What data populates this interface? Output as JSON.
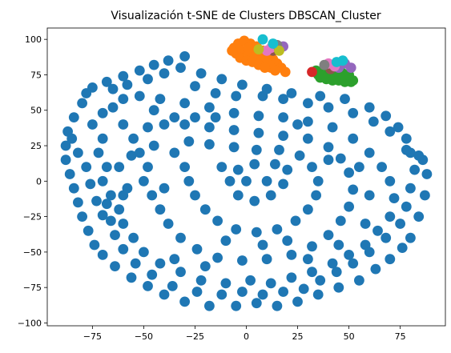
{
  "chart_data": {
    "type": "scatter",
    "title": "Visualización t-SNE de Clusters DBSCAN_Cluster",
    "xlabel": "",
    "ylabel": "",
    "xlim": [
      -97,
      97
    ],
    "ylim": [
      -102,
      108
    ],
    "x_ticks": [
      -75,
      -50,
      -25,
      0,
      25,
      50,
      75
    ],
    "y_ticks": [
      -100,
      -75,
      -50,
      -25,
      0,
      25,
      50,
      75,
      100
    ],
    "grid": false,
    "legend": "none",
    "point_radius_data": 2.5,
    "series": [
      {
        "color": "#1f77b4",
        "points": [
          [
            -30,
            88
          ],
          [
            -38,
            85
          ],
          [
            -45,
            82
          ],
          [
            -52,
            78
          ],
          [
            -60,
            74
          ],
          [
            -68,
            70
          ],
          [
            -75,
            66
          ],
          [
            -78,
            62
          ],
          [
            -80,
            55
          ],
          [
            -84,
            45
          ],
          [
            -87,
            35
          ],
          [
            -88,
            25
          ],
          [
            -88,
            15
          ],
          [
            -86,
            5
          ],
          [
            -84,
            -5
          ],
          [
            -82,
            -15
          ],
          [
            -80,
            -25
          ],
          [
            -77,
            -35
          ],
          [
            -74,
            -45
          ],
          [
            -70,
            -52
          ],
          [
            -64,
            -60
          ],
          [
            -56,
            -68
          ],
          [
            -48,
            -74
          ],
          [
            -40,
            -80
          ],
          [
            -30,
            -85
          ],
          [
            -18,
            -88
          ],
          [
            -5,
            -88
          ],
          [
            5,
            -86
          ],
          [
            15,
            -88
          ],
          [
            25,
            -85
          ],
          [
            35,
            -80
          ],
          [
            45,
            -75
          ],
          [
            55,
            -70
          ],
          [
            63,
            -62
          ],
          [
            70,
            -55
          ],
          [
            76,
            -47
          ],
          [
            80,
            -40
          ],
          [
            84,
            -25
          ],
          [
            87,
            -10
          ],
          [
            88,
            5
          ],
          [
            86,
            15
          ],
          [
            80,
            20
          ],
          [
            78,
            22
          ],
          [
            70,
            35
          ],
          [
            62,
            42
          ],
          [
            52,
            48
          ],
          [
            40,
            52
          ],
          [
            30,
            55
          ],
          [
            18,
            58
          ],
          [
            8,
            60
          ],
          [
            -5,
            60
          ],
          [
            -15,
            62
          ],
          [
            -25,
            67
          ],
          [
            -75,
            40
          ],
          [
            -70,
            30
          ],
          [
            -72,
            20
          ],
          [
            -68,
            10
          ],
          [
            -70,
            0
          ],
          [
            -66,
            -10
          ],
          [
            -62,
            -20
          ],
          [
            -60,
            -30
          ],
          [
            -55,
            -40
          ],
          [
            -50,
            -50
          ],
          [
            -42,
            -58
          ],
          [
            -32,
            -64
          ],
          [
            -22,
            -70
          ],
          [
            -10,
            -72
          ],
          [
            2,
            -70
          ],
          [
            12,
            -72
          ],
          [
            22,
            -68
          ],
          [
            32,
            -64
          ],
          [
            42,
            -58
          ],
          [
            50,
            -52
          ],
          [
            58,
            -45
          ],
          [
            64,
            -35
          ],
          [
            70,
            -25
          ],
          [
            72,
            -12
          ],
          [
            70,
            0
          ],
          [
            66,
            10
          ],
          [
            60,
            20
          ],
          [
            52,
            30
          ],
          [
            42,
            38
          ],
          [
            30,
            42
          ],
          [
            18,
            45
          ],
          [
            6,
            46
          ],
          [
            -6,
            48
          ],
          [
            -18,
            52
          ],
          [
            -30,
            55
          ],
          [
            -42,
            58
          ],
          [
            -52,
            60
          ],
          [
            -60,
            58
          ],
          [
            -65,
            52
          ],
          [
            -70,
            48
          ],
          [
            -55,
            30
          ],
          [
            -52,
            20
          ],
          [
            -48,
            10
          ],
          [
            -50,
            0
          ],
          [
            -46,
            -10
          ],
          [
            -42,
            -20
          ],
          [
            -38,
            -30
          ],
          [
            -32,
            -40
          ],
          [
            -24,
            -48
          ],
          [
            -14,
            -54
          ],
          [
            -2,
            -56
          ],
          [
            10,
            -55
          ],
          [
            22,
            -52
          ],
          [
            32,
            -46
          ],
          [
            40,
            -38
          ],
          [
            46,
            -28
          ],
          [
            50,
            -18
          ],
          [
            52,
            -6
          ],
          [
            50,
            6
          ],
          [
            46,
            16
          ],
          [
            40,
            24
          ],
          [
            30,
            30
          ],
          [
            18,
            32
          ],
          [
            6,
            34
          ],
          [
            -6,
            36
          ],
          [
            -18,
            38
          ],
          [
            -30,
            40
          ],
          [
            -40,
            40
          ],
          [
            -48,
            38
          ],
          [
            -35,
            20
          ],
          [
            -30,
            10
          ],
          [
            -28,
            0
          ],
          [
            -25,
            -10
          ],
          [
            -20,
            -20
          ],
          [
            -14,
            -28
          ],
          [
            -5,
            -34
          ],
          [
            5,
            -36
          ],
          [
            15,
            -34
          ],
          [
            24,
            -28
          ],
          [
            30,
            -20
          ],
          [
            34,
            -10
          ],
          [
            35,
            0
          ],
          [
            32,
            10
          ],
          [
            26,
            18
          ],
          [
            16,
            22
          ],
          [
            5,
            22
          ],
          [
            -6,
            24
          ],
          [
            -18,
            26
          ],
          [
            -28,
            28
          ],
          [
            -12,
            10
          ],
          [
            -8,
            0
          ],
          [
            -4,
            -10
          ],
          [
            4,
            -14
          ],
          [
            12,
            -10
          ],
          [
            18,
            -2
          ],
          [
            20,
            8
          ],
          [
            14,
            12
          ],
          [
            4,
            12
          ],
          [
            -4,
            8
          ],
          [
            -85,
            30
          ],
          [
            -82,
            20
          ],
          [
            -78,
            10
          ],
          [
            -76,
            -2
          ],
          [
            -73,
            -14
          ],
          [
            -70,
            -24
          ],
          [
            -65,
            65
          ],
          [
            -58,
            68
          ],
          [
            -48,
            72
          ],
          [
            -40,
            76
          ],
          [
            -32,
            80
          ],
          [
            -22,
            76
          ],
          [
            -12,
            72
          ],
          [
            -2,
            68
          ],
          [
            10,
            65
          ],
          [
            22,
            62
          ],
          [
            36,
            60
          ],
          [
            48,
            58
          ],
          [
            60,
            52
          ],
          [
            68,
            46
          ],
          [
            74,
            38
          ],
          [
            78,
            30
          ],
          [
            84,
            18
          ],
          [
            82,
            8
          ],
          [
            80,
            -5
          ],
          [
            78,
            -18
          ],
          [
            75,
            -30
          ],
          [
            68,
            -40
          ],
          [
            60,
            -50
          ],
          [
            52,
            -58
          ],
          [
            44,
            -64
          ],
          [
            36,
            -70
          ],
          [
            28,
            -76
          ],
          [
            18,
            -78
          ],
          [
            8,
            -80
          ],
          [
            -2,
            -78
          ],
          [
            -12,
            -80
          ],
          [
            -24,
            -78
          ],
          [
            -36,
            -74
          ],
          [
            -46,
            -66
          ],
          [
            -54,
            -58
          ],
          [
            -60,
            -48
          ],
          [
            -64,
            -38
          ],
          [
            -66,
            -28
          ],
          [
            -68,
            -16
          ],
          [
            -62,
            10
          ],
          [
            -58,
            -5
          ],
          [
            -56,
            18
          ],
          [
            -60,
            40
          ],
          [
            -45,
            50
          ],
          [
            -35,
            45
          ],
          [
            -25,
            45
          ],
          [
            -15,
            45
          ],
          [
            0,
            0
          ],
          [
            10,
            0
          ],
          [
            25,
            40
          ],
          [
            40,
            15
          ],
          [
            55,
            10
          ],
          [
            60,
            -10
          ],
          [
            58,
            -30
          ],
          [
            45,
            -45
          ],
          [
            30,
            -55
          ],
          [
            -20,
            -60
          ],
          [
            -35,
            -55
          ],
          [
            -40,
            -5
          ],
          [
            -45,
            25
          ],
          [
            -10,
            -42
          ],
          [
            8,
            -45
          ],
          [
            20,
            -42
          ],
          [
            -60,
            -10
          ]
        ]
      },
      {
        "color": "#ff7f0e",
        "points": [
          [
            -6,
            94
          ],
          [
            -4,
            97
          ],
          [
            -1,
            99
          ],
          [
            2,
            97
          ],
          [
            5,
            95
          ],
          [
            8,
            92
          ],
          [
            11,
            89
          ],
          [
            13,
            86
          ],
          [
            15,
            83
          ],
          [
            17,
            80
          ],
          [
            19,
            77
          ],
          [
            -5,
            90
          ],
          [
            -2,
            92
          ],
          [
            1,
            91
          ],
          [
            4,
            89
          ],
          [
            7,
            86
          ],
          [
            10,
            83
          ],
          [
            12,
            80
          ],
          [
            14,
            78
          ],
          [
            -3,
            87
          ],
          [
            0,
            85
          ],
          [
            3,
            84
          ],
          [
            6,
            82
          ],
          [
            9,
            80
          ],
          [
            1,
            94
          ],
          [
            -7,
            92
          ]
        ]
      },
      {
        "color": "#2ca02c",
        "points": [
          [
            34,
            78
          ],
          [
            37,
            76
          ],
          [
            40,
            75
          ],
          [
            43,
            74
          ],
          [
            46,
            73
          ],
          [
            49,
            72
          ],
          [
            52,
            71
          ],
          [
            36,
            73
          ],
          [
            39,
            72
          ],
          [
            42,
            71
          ],
          [
            45,
            71
          ],
          [
            48,
            70
          ],
          [
            51,
            70
          ],
          [
            38,
            79
          ],
          [
            41,
            78
          ],
          [
            44,
            77
          ],
          [
            47,
            76
          ],
          [
            50,
            75
          ],
          [
            35,
            75
          ]
        ]
      },
      {
        "color": "#d62728",
        "points": [
          [
            32,
            77
          ]
        ]
      },
      {
        "color": "#9467bd",
        "points": [
          [
            18,
            95
          ],
          [
            15,
            93
          ],
          [
            48,
            83
          ],
          [
            45,
            80
          ],
          [
            51,
            80
          ]
        ]
      },
      {
        "color": "#8c564b",
        "points": [
          [
            13,
            92
          ],
          [
            41,
            79
          ]
        ]
      },
      {
        "color": "#e377c2",
        "points": [
          [
            10,
            92
          ],
          [
            12,
            94
          ],
          [
            40,
            83
          ],
          [
            43,
            81
          ]
        ]
      },
      {
        "color": "#7f7f7f",
        "points": [
          [
            15,
            96
          ],
          [
            38,
            82
          ]
        ]
      },
      {
        "color": "#bcbd22",
        "points": [
          [
            16,
            92
          ],
          [
            6,
            93
          ]
        ]
      },
      {
        "color": "#17becf",
        "points": [
          [
            13,
            97
          ],
          [
            8,
            100
          ],
          [
            47,
            85
          ],
          [
            44,
            84
          ]
        ]
      }
    ]
  }
}
